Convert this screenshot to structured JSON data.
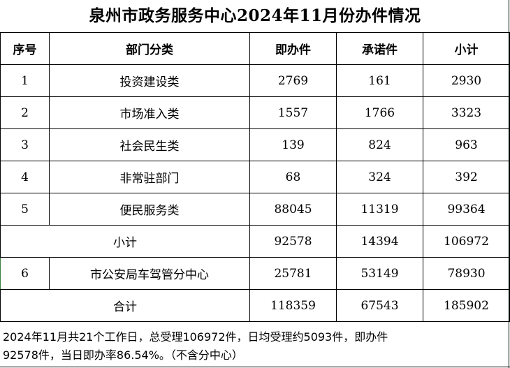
{
  "title": "泉州市政务服务中心2024年11月份办件情况",
  "headers": [
    "序号",
    "部门分类",
    "即办件",
    "承诺件",
    "小计"
  ],
  "rows": [
    {
      "no": "1",
      "category": "投资建设类",
      "instant": "2769",
      "promised": "161",
      "subtotal": "2930"
    },
    {
      "no": "2",
      "category": "市场准入类",
      "instant": "1557",
      "promised": "1766",
      "subtotal": "3323"
    },
    {
      "no": "3",
      "category": "社会民生类",
      "instant": "139",
      "promised": "824",
      "subtotal": "963"
    },
    {
      "no": "4",
      "category": "非常驻部门",
      "instant": "68",
      "promised": "324",
      "subtotal": "392"
    },
    {
      "no": "5",
      "category": "便民服务类",
      "instant": "88045",
      "promised": "11319",
      "subtotal": "99364"
    }
  ],
  "subtotal_row": {
    "label": "小计",
    "instant": "92578",
    "promised": "14394",
    "subtotal": "106972"
  },
  "row6": {
    "no": "6",
    "category": "市公安局车驾管分中心",
    "instant": "25781",
    "promised": "53149",
    "subtotal": "78930"
  },
  "total_row": {
    "label": "合计",
    "instant": "118359",
    "promised": "67543",
    "subtotal": "185902"
  },
  "note": {
    "line1": "2024年11月共21个工作日，总受理106972件，日均受理约5093件，即办件",
    "line2": "92578件，当日即办率86.54%。（不含分中心）"
  }
}
